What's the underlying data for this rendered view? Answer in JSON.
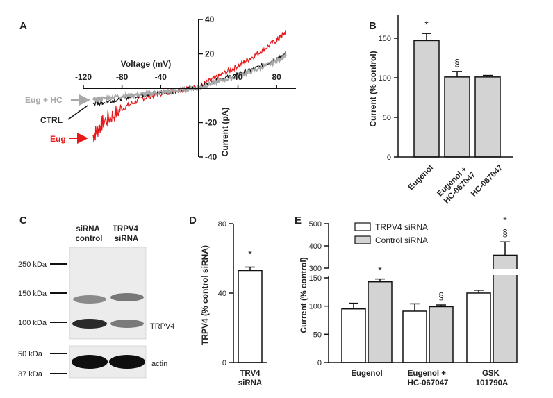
{
  "panel_letters": {
    "a": "A",
    "b": "B",
    "c": "C",
    "d": "D",
    "e": "E"
  },
  "colors": {
    "ctrl": "#111111",
    "eug": "#e41a1c",
    "eug_hc": "#a9a9a9",
    "bar_gray": "#d3d3d3",
    "bar_white": "#ffffff",
    "blot_bg": "#ececec"
  },
  "chart_data": [
    {
      "id": "A",
      "type": "line",
      "xlabel": "Voltage (mV)",
      "ylabel": "Current (pA)",
      "xlim": [
        -120,
        100
      ],
      "ylim": [
        -40,
        40
      ],
      "xticks": [
        -120,
        -80,
        -40,
        40,
        80
      ],
      "yticks": [
        -40,
        -20,
        20,
        40
      ],
      "series": [
        {
          "name": "CTRL",
          "color": "#111111",
          "x": [
            -110,
            -100,
            -80,
            -60,
            -40,
            -20,
            0,
            20,
            40,
            60,
            80,
            90
          ],
          "y": [
            -9,
            -8.5,
            -6,
            -4,
            -2.5,
            -1,
            0.5,
            5,
            8,
            12,
            17,
            20
          ]
        },
        {
          "name": "Eug",
          "color": "#e41a1c",
          "x": [
            -110,
            -100,
            -80,
            -60,
            -40,
            -20,
            0,
            20,
            40,
            60,
            80,
            90
          ],
          "y": [
            -28,
            -20,
            -12,
            -6,
            -3,
            -1,
            1,
            7,
            13,
            20,
            28,
            33
          ]
        },
        {
          "name": "Eug + HC",
          "color": "#a9a9a9",
          "x": [
            -110,
            -100,
            -80,
            -60,
            -40,
            -20,
            0,
            20,
            40,
            60,
            80,
            90
          ],
          "y": [
            -7,
            -6,
            -4.5,
            -3.5,
            -2.5,
            -1,
            0.5,
            4,
            7,
            11,
            16,
            19
          ]
        }
      ],
      "labels": {
        "eug_hc": "Eug + HC",
        "ctrl": "CTRL",
        "eug": "Eug"
      }
    },
    {
      "id": "B",
      "type": "bar",
      "ylabel": "Current (% control)",
      "ylim": [
        0,
        170
      ],
      "yticks": [
        0,
        50,
        100,
        150
      ],
      "categories": [
        "Eugenol",
        "Eugenol + HC-067047",
        "HC-067047"
      ],
      "values": [
        147,
        101,
        101
      ],
      "errors": [
        9,
        7,
        2
      ],
      "annotations": [
        "*",
        "§",
        ""
      ]
    },
    {
      "id": "D",
      "type": "bar",
      "ylabel": "TRPV4 (% control siRNA)",
      "ylim": [
        0,
        80
      ],
      "yticks": [
        0,
        40,
        80
      ],
      "categories": [
        "TRV4 siRNA"
      ],
      "values": [
        53
      ],
      "errors": [
        2
      ],
      "annotations": [
        "*"
      ]
    },
    {
      "id": "E",
      "type": "bar",
      "ylabel": "Current (% control)",
      "yticks": [
        0,
        50,
        100,
        150,
        300,
        400,
        500
      ],
      "categories": [
        "Eugenol",
        "Eugenol + HC-067047",
        "GSK 101790A"
      ],
      "series": [
        {
          "name": "TRPV4 siRNA",
          "values": [
            95,
            91,
            123
          ],
          "errors": [
            10,
            13,
            5
          ]
        },
        {
          "name": "Control siRNA",
          "values": [
            143,
            99,
            358
          ],
          "errors": [
            5,
            3,
            60
          ]
        }
      ],
      "annotations": {
        "control": [
          "*",
          "§",
          "*"
        ],
        "control_extra": [
          "",
          "",
          "§"
        ]
      },
      "legend_placement": "top"
    }
  ],
  "blot": {
    "lane_labels": [
      "siRNA control",
      "TRPV4 siRNA"
    ],
    "markers": [
      "250 kDa",
      "150 kDa",
      "100 kDa",
      "50 kDa",
      "37 kDa"
    ],
    "band_labels": {
      "trpv4": "TRPV4",
      "actin": "actin"
    }
  }
}
